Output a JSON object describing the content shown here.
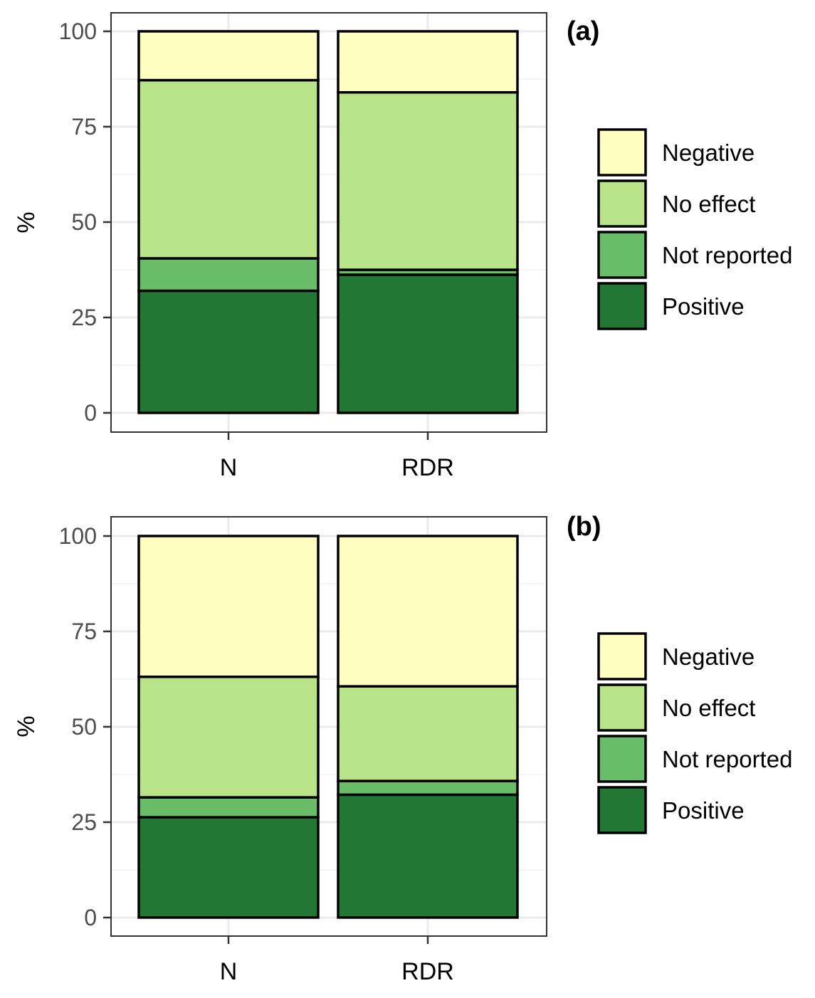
{
  "chart_data": [
    {
      "type": "bar",
      "stacked": true,
      "panel_tag": "(a)",
      "ylabel": "%",
      "xlabel": "",
      "categories": [
        "N",
        "RDR"
      ],
      "ylim": [
        0,
        100
      ],
      "yticks": [
        0,
        25,
        50,
        75,
        100
      ],
      "grid": true,
      "legend_position": "right",
      "series": [
        {
          "name": "Positive",
          "color": "#217733",
          "values": [
            32.0,
            36.2
          ]
        },
        {
          "name": "Not reported",
          "color": "#69bd69",
          "values": [
            8.5,
            1.3
          ]
        },
        {
          "name": "No effect",
          "color": "#b8e389",
          "values": [
            46.7,
            46.5
          ]
        },
        {
          "name": "Negative",
          "color": "#fefec1",
          "values": [
            12.8,
            16.0
          ]
        }
      ],
      "legend_order": [
        "Negative",
        "No effect",
        "Not reported",
        "Positive"
      ]
    },
    {
      "type": "bar",
      "stacked": true,
      "panel_tag": "(b)",
      "ylabel": "%",
      "xlabel": "",
      "categories": [
        "N",
        "RDR"
      ],
      "ylim": [
        0,
        100
      ],
      "yticks": [
        0,
        25,
        50,
        75,
        100
      ],
      "grid": true,
      "legend_position": "right",
      "series": [
        {
          "name": "Positive",
          "color": "#217733",
          "values": [
            26.3,
            32.2
          ]
        },
        {
          "name": "Not reported",
          "color": "#69bd69",
          "values": [
            5.2,
            3.6
          ]
        },
        {
          "name": "No effect",
          "color": "#b8e389",
          "values": [
            31.6,
            24.8
          ]
        },
        {
          "name": "Negative",
          "color": "#fefec1",
          "values": [
            36.9,
            39.4
          ]
        }
      ],
      "legend_order": [
        "Negative",
        "No effect",
        "Not reported",
        "Positive"
      ]
    }
  ]
}
